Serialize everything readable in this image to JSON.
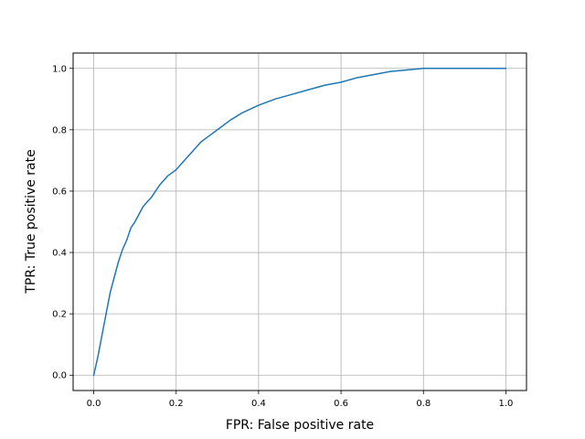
{
  "chart_data": {
    "type": "line",
    "xlabel": "FPR: False positive rate",
    "ylabel": "TPR: True positive rate",
    "xlim": [
      -0.05,
      1.05
    ],
    "ylim": [
      -0.05,
      1.05
    ],
    "grid": true,
    "x_ticks": [
      0.0,
      0.2,
      0.4,
      0.6,
      0.8,
      1.0
    ],
    "y_ticks": [
      0.0,
      0.2,
      0.4,
      0.6,
      0.8,
      1.0
    ],
    "x_tick_labels": [
      "0.0",
      "0.2",
      "0.4",
      "0.6",
      "0.8",
      "1.0"
    ],
    "y_tick_labels": [
      "0.0",
      "0.2",
      "0.4",
      "0.6",
      "0.8",
      "1.0"
    ],
    "series": [
      {
        "color": "#1f77b4",
        "x": [
          0.0,
          0.005,
          0.01,
          0.02,
          0.03,
          0.04,
          0.05,
          0.06,
          0.07,
          0.08,
          0.09,
          0.1,
          0.12,
          0.14,
          0.16,
          0.18,
          0.2,
          0.22,
          0.24,
          0.26,
          0.28,
          0.3,
          0.33,
          0.36,
          0.4,
          0.44,
          0.48,
          0.52,
          0.56,
          0.6,
          0.64,
          0.68,
          0.72,
          0.76,
          0.8,
          0.85,
          0.9,
          0.95,
          1.0
        ],
        "y": [
          0.0,
          0.03,
          0.06,
          0.13,
          0.2,
          0.27,
          0.32,
          0.37,
          0.41,
          0.44,
          0.48,
          0.5,
          0.55,
          0.58,
          0.62,
          0.65,
          0.67,
          0.7,
          0.73,
          0.76,
          0.78,
          0.8,
          0.83,
          0.855,
          0.88,
          0.9,
          0.915,
          0.93,
          0.945,
          0.955,
          0.97,
          0.98,
          0.99,
          0.995,
          1.0,
          1.0,
          1.0,
          1.0,
          1.0
        ]
      }
    ]
  }
}
